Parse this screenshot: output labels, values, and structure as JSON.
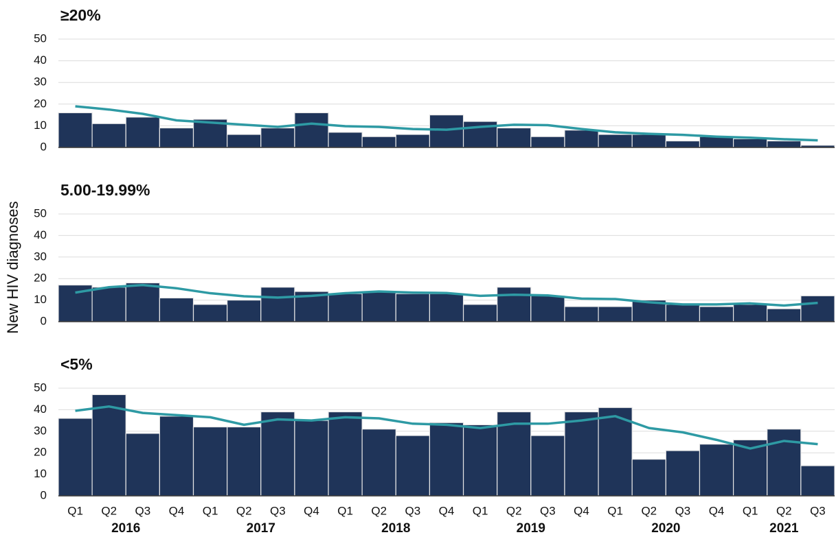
{
  "chart_data": [
    {
      "type": "bar",
      "title": "≥20%",
      "ylim": [
        0,
        50
      ],
      "yticks": [
        0,
        10,
        20,
        30,
        40,
        50
      ],
      "grid": true,
      "series": [
        {
          "type": "bar",
          "color": "#1f3459",
          "values": [
            16,
            11,
            14,
            9,
            13,
            6,
            9,
            16,
            7,
            5,
            6,
            15,
            12,
            9,
            5,
            8,
            6,
            6,
            3,
            5,
            4,
            3,
            1
          ]
        },
        {
          "type": "line",
          "color": "#2e9aa4",
          "values": [
            19,
            17.5,
            15.5,
            12.5,
            11.5,
            10.5,
            9.5,
            11,
            9.8,
            9.5,
            8.5,
            8.2,
            9.5,
            10.5,
            10.3,
            8.5,
            7,
            6.3,
            5.8,
            5,
            4.5,
            3.8,
            3.3
          ]
        }
      ]
    },
    {
      "type": "bar",
      "title": "5.00-19.99%",
      "ylabel": "New HIV diagnoses",
      "ylim": [
        0,
        50
      ],
      "yticks": [
        0,
        10,
        20,
        30,
        40,
        50
      ],
      "grid": true,
      "series": [
        {
          "type": "bar",
          "color": "#1f3459",
          "values": [
            17,
            16,
            18,
            11,
            8,
            10,
            16,
            14,
            13,
            14,
            13,
            13,
            8,
            16,
            12,
            7,
            7,
            10,
            8,
            7,
            8,
            6,
            12
          ]
        },
        {
          "type": "line",
          "color": "#2e9aa4",
          "values": [
            13.5,
            16,
            17,
            15.5,
            13.2,
            11.8,
            11.2,
            12,
            13.2,
            14,
            13.5,
            13.3,
            12,
            12.5,
            12.2,
            10.7,
            10.5,
            9,
            8,
            8,
            8.5,
            7.5,
            8.7
          ]
        }
      ]
    },
    {
      "type": "bar",
      "title": "<5%",
      "ylim": [
        0,
        50
      ],
      "yticks": [
        0,
        10,
        20,
        30,
        40,
        50
      ],
      "grid": true,
      "categories": [
        "Q1",
        "Q2",
        "Q3",
        "Q4",
        "Q1",
        "Q2",
        "Q3",
        "Q4",
        "Q1",
        "Q2",
        "Q3",
        "Q4",
        "Q1",
        "Q2",
        "Q3",
        "Q4",
        "Q1",
        "Q2",
        "Q3",
        "Q4",
        "Q1",
        "Q2",
        "Q3"
      ],
      "year_labels": [
        "2016",
        "2017",
        "2018",
        "2019",
        "2020",
        "2021"
      ],
      "series": [
        {
          "type": "bar",
          "color": "#1f3459",
          "values": [
            36,
            47,
            29,
            37,
            32,
            32,
            39,
            35,
            39,
            31,
            28,
            34,
            33,
            39,
            28,
            39,
            41,
            17,
            21,
            24,
            26,
            31,
            14
          ]
        },
        {
          "type": "line",
          "color": "#2e9aa4",
          "values": [
            39.5,
            41.5,
            38.5,
            37.5,
            36.5,
            33,
            35.5,
            35,
            36.5,
            36,
            33.5,
            33,
            31.5,
            33.5,
            33.5,
            35,
            37,
            31.5,
            29.5,
            26,
            22,
            25.5,
            24
          ]
        }
      ]
    }
  ]
}
